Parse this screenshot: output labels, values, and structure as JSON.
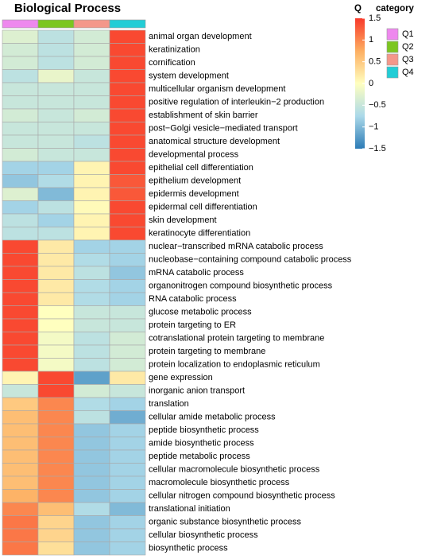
{
  "chart_data": {
    "type": "heatmap",
    "title": "Biological Process",
    "colorbar_title": "Q",
    "legend_title": "category",
    "columns": [
      {
        "name": "Q1",
        "color": "#ee88ee"
      },
      {
        "name": "Q2",
        "color": "#7cc61f"
      },
      {
        "name": "Q3",
        "color": "#f4978a"
      },
      {
        "name": "Q4",
        "color": "#22cdd6"
      }
    ],
    "rows": [
      "animal organ development",
      "keratinization",
      "cornification",
      "system development",
      "multicellular organism development",
      "positive regulation of interleukin−2 production",
      "establishment of skin barrier",
      "post−Golgi vesicle−mediated transport",
      "anatomical structure development",
      "developmental process",
      "epithelial cell differentiation",
      "epithelium development",
      "epidermis development",
      "epidermal cell differentiation",
      "skin development",
      "keratinocyte differentiation",
      "nuclear−transcribed mRNA catabolic process",
      "nucleobase−containing compound catabolic process",
      "mRNA catabolic process",
      "organonitrogen compound biosynthetic process",
      "RNA catabolic process",
      "glucose metabolic process",
      "protein targeting to ER",
      "cotranslational protein targeting to membrane",
      "protein targeting to membrane",
      "protein localization to endoplasmic reticulum",
      "gene expression",
      "inorganic anion transport",
      "translation",
      "cellular amide metabolic process",
      "peptide biosynthetic process",
      "amide biosynthetic process",
      "peptide metabolic process",
      "cellular macromolecule biosynthetic process",
      "macromolecule biosynthetic process",
      "cellular nitrogen compound biosynthetic process",
      "translational initiation",
      "organic substance biosynthetic process",
      "cellular biosynthetic process",
      "biosynthetic process"
    ],
    "values": [
      [
        -0.3,
        -0.6,
        -0.4,
        1.4
      ],
      [
        -0.4,
        -0.6,
        -0.4,
        1.4
      ],
      [
        -0.4,
        -0.6,
        -0.4,
        1.4
      ],
      [
        -0.6,
        -0.2,
        -0.5,
        1.4
      ],
      [
        -0.5,
        -0.5,
        -0.5,
        1.4
      ],
      [
        -0.5,
        -0.5,
        -0.5,
        1.4
      ],
      [
        -0.4,
        -0.5,
        -0.4,
        1.4
      ],
      [
        -0.5,
        -0.5,
        -0.5,
        1.4
      ],
      [
        -0.5,
        -0.5,
        -0.6,
        1.4
      ],
      [
        -0.4,
        -0.5,
        -0.5,
        1.4
      ],
      [
        -0.8,
        -0.8,
        0.1,
        1.4
      ],
      [
        -0.9,
        -0.7,
        0.1,
        1.3
      ],
      [
        -0.3,
        -1.0,
        0.1,
        1.3
      ],
      [
        -0.8,
        -0.6,
        0.05,
        1.4
      ],
      [
        -0.6,
        -0.8,
        0.1,
        1.4
      ],
      [
        -0.6,
        -0.6,
        0.1,
        1.4
      ],
      [
        1.4,
        0.2,
        -0.8,
        -0.8
      ],
      [
        1.4,
        0.2,
        -0.7,
        -0.8
      ],
      [
        1.4,
        0.2,
        -0.6,
        -0.9
      ],
      [
        1.4,
        0.2,
        -0.7,
        -0.8
      ],
      [
        1.4,
        0.2,
        -0.7,
        -0.8
      ],
      [
        1.4,
        0,
        -0.5,
        -0.5
      ],
      [
        1.4,
        0,
        -0.5,
        -0.5
      ],
      [
        1.4,
        -0.1,
        -0.6,
        -0.4
      ],
      [
        1.4,
        -0.1,
        -0.6,
        -0.4
      ],
      [
        1.4,
        -0.1,
        -0.6,
        -0.4
      ],
      [
        0.1,
        1.4,
        -1.2,
        0.2
      ],
      [
        -0.5,
        1.4,
        -0.4,
        -0.5
      ],
      [
        0.5,
        1.0,
        -0.7,
        -0.8
      ],
      [
        0.6,
        1.0,
        -0.6,
        -1.1
      ],
      [
        0.6,
        1.0,
        -0.9,
        -0.8
      ],
      [
        0.6,
        1.0,
        -0.9,
        -0.8
      ],
      [
        0.6,
        1.0,
        -0.9,
        -0.8
      ],
      [
        0.6,
        1.0,
        -0.9,
        -0.8
      ],
      [
        0.6,
        1.0,
        -0.9,
        -0.8
      ],
      [
        0.7,
        1.0,
        -0.9,
        -0.8
      ],
      [
        1.0,
        0.6,
        -0.7,
        -1.0
      ],
      [
        1.1,
        0.4,
        -0.9,
        -0.8
      ],
      [
        1.1,
        0.4,
        -0.9,
        -0.8
      ],
      [
        1.1,
        0.3,
        -0.9,
        -0.8
      ]
    ],
    "colors": [
      "#2c7bb6",
      "#abd9e9",
      "#ffffbf",
      "#fdae61",
      "#f8392a"
    ],
    "colorlim": [
      -1.5,
      1.5
    ],
    "colorticks": [
      {
        "value": -1.5,
        "label": "−1.5"
      },
      {
        "value": -1,
        "label": "−1"
      },
      {
        "value": -0.5,
        "label": "−0.5"
      },
      0,
      0.5,
      1,
      1.5
    ]
  }
}
